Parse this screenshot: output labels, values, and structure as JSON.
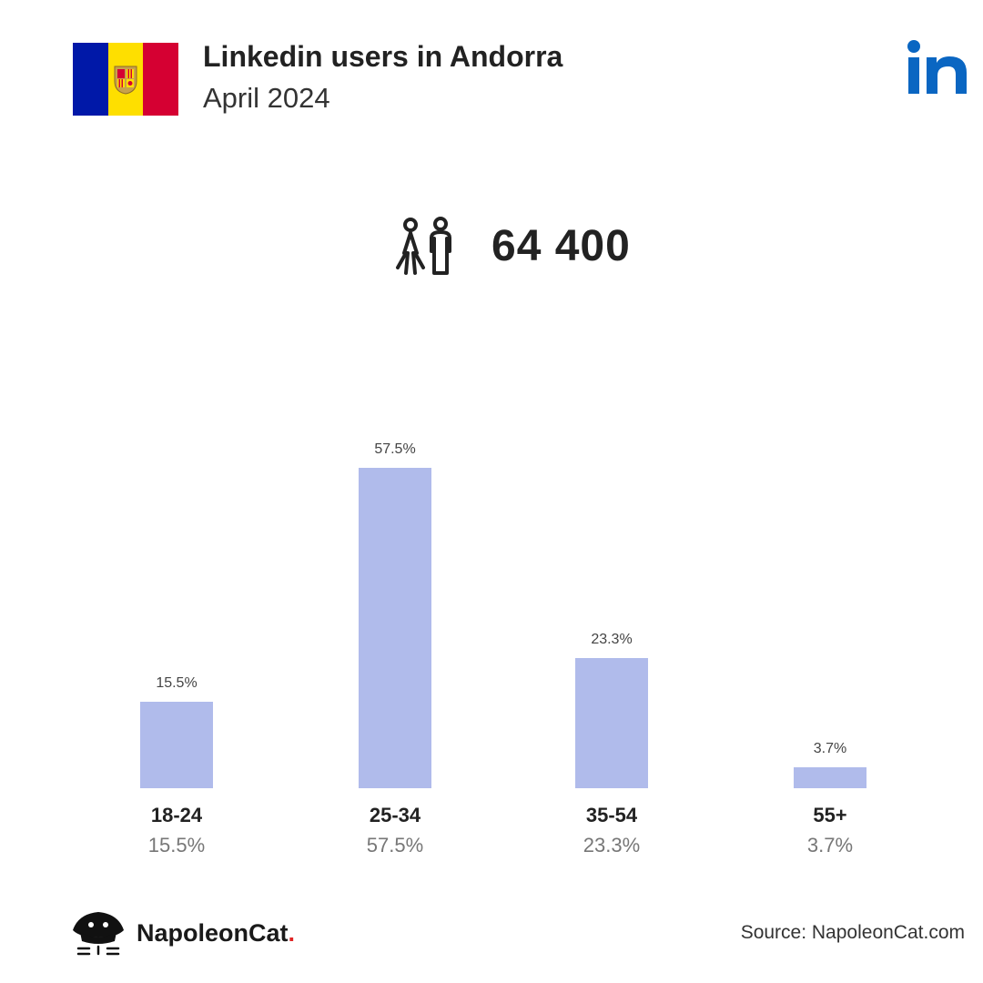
{
  "header": {
    "title": "Linkedin users in Andorra",
    "subtitle": "April 2024"
  },
  "flag": {
    "colors": [
      "#0018a8",
      "#fedf00",
      "#d50032"
    ],
    "icon": "andorra-flag"
  },
  "logo": {
    "icon": "linkedin-logo",
    "color": "#0a66c2"
  },
  "total": {
    "icon": "users-icon",
    "value": "64 400"
  },
  "chart_data": {
    "type": "bar",
    "categories": [
      "18-24",
      "25-34",
      "35-54",
      "55+"
    ],
    "values": [
      15.5,
      57.5,
      23.3,
      3.7
    ],
    "value_labels": [
      "15.5%",
      "57.5%",
      "23.3%",
      "3.7%"
    ],
    "title": "",
    "xlabel": "",
    "ylabel": "",
    "ylim": [
      0,
      57.5
    ],
    "bar_color": "#b0bbeb",
    "grid": false
  },
  "footer": {
    "brand_name": "NapoleonCat",
    "brand_dot": ".",
    "source": "Source: NapoleonCat.com"
  }
}
